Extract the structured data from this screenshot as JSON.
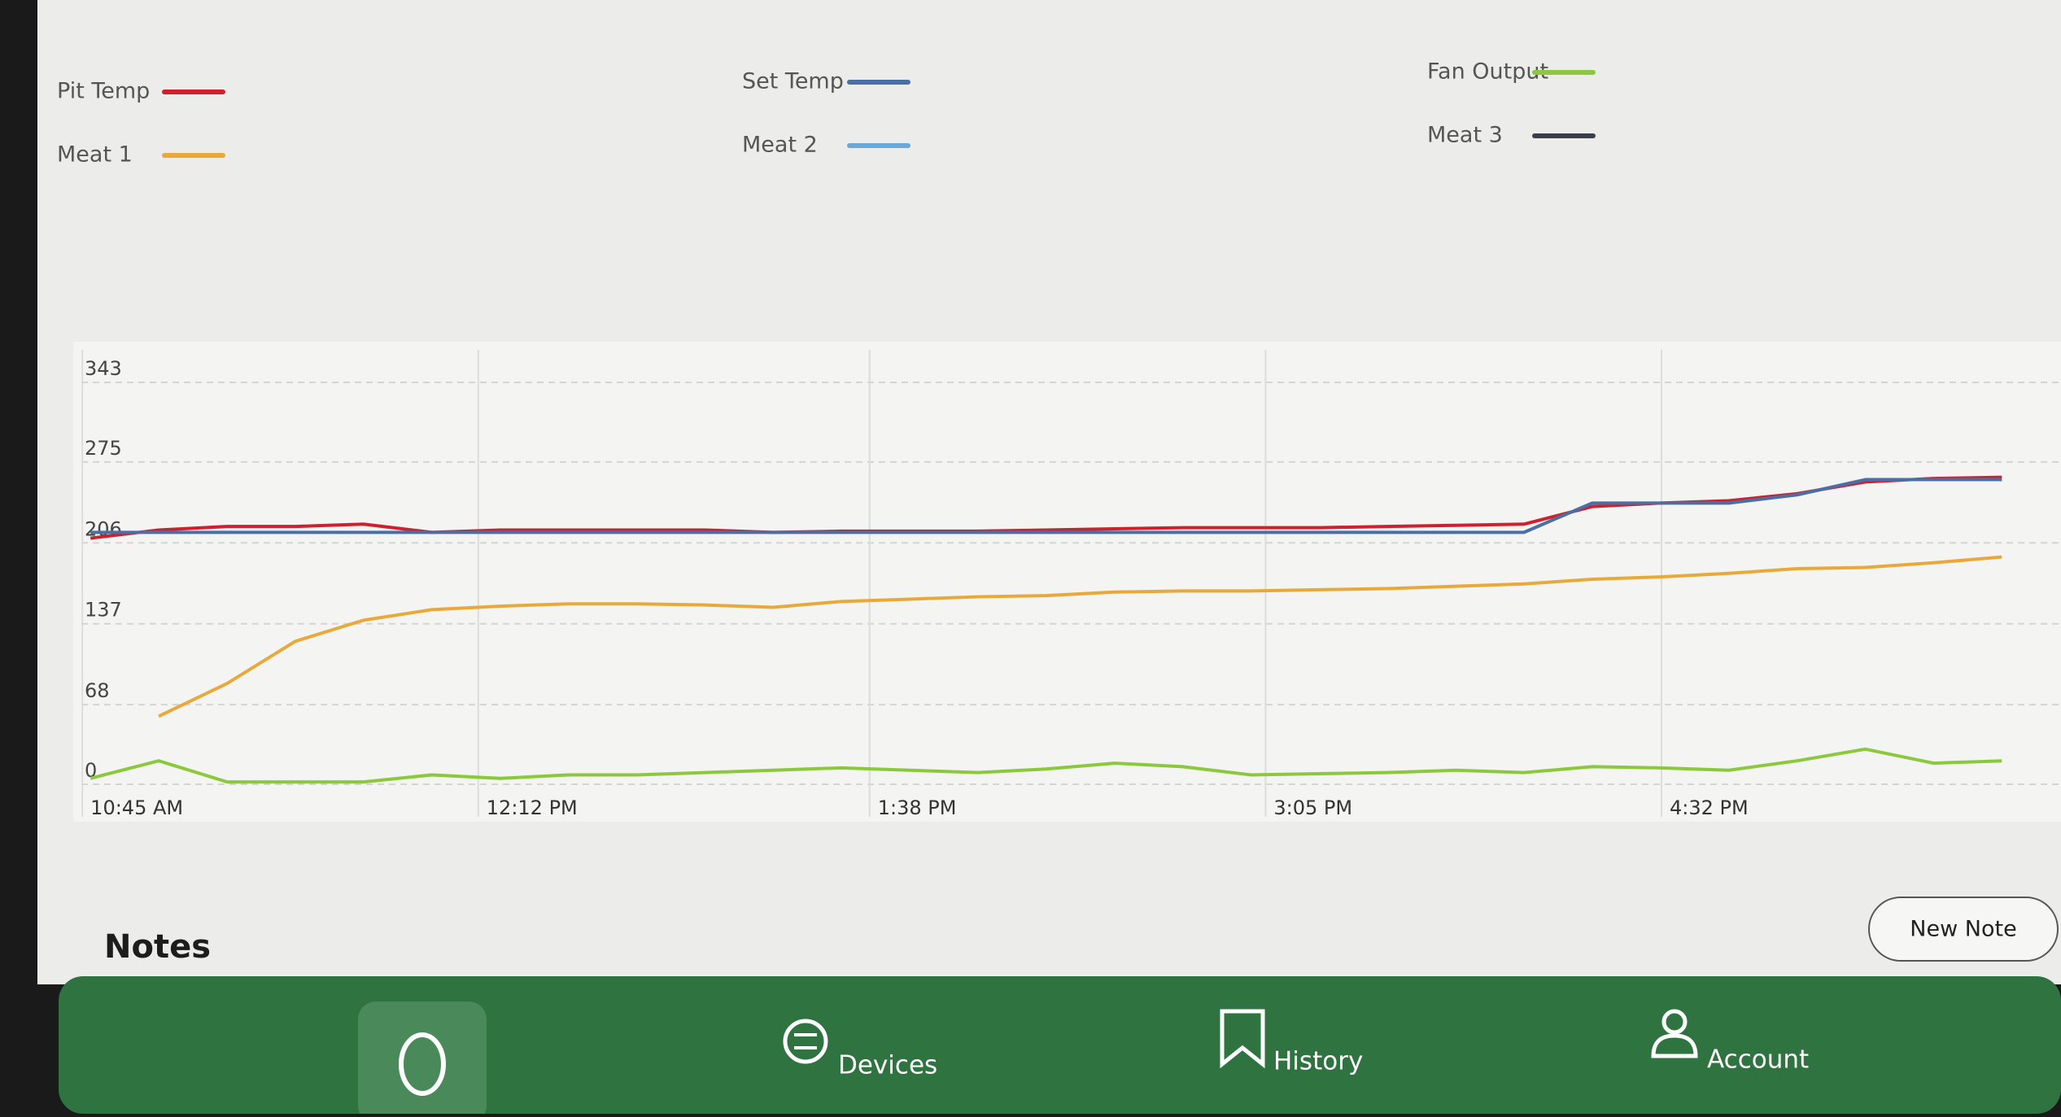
{
  "chart_data": {
    "type": "line",
    "x": [
      "10:45 AM",
      "11:00 AM",
      "11:15 AM",
      "11:30 AM",
      "11:45 AM",
      "12:00 PM",
      "12:15 PM",
      "12:30 PM",
      "12:45 PM",
      "1:00 PM",
      "1:15 PM",
      "1:30 PM",
      "1:45 PM",
      "2:00 PM",
      "2:15 PM",
      "2:30 PM",
      "2:45 PM",
      "3:00 PM",
      "3:15 PM",
      "3:30 PM",
      "3:45 PM",
      "4:00 PM",
      "4:15 PM",
      "4:30 PM",
      "4:45 PM",
      "5:00 PM",
      "5:15 PM",
      "5:30 PM",
      "5:45 PM"
    ],
    "series": [
      {
        "name": "Pit Temp",
        "color": "#d0202e",
        "values": [
          210,
          217,
          220,
          220,
          222,
          215,
          217,
          217,
          217,
          217,
          215,
          216,
          216,
          216,
          217,
          218,
          219,
          219,
          219,
          220,
          221,
          222,
          237,
          240,
          242,
          248,
          258,
          261,
          262
        ]
      },
      {
        "name": "Meat 1",
        "color": "#e8a93a",
        "values": [
          null,
          58,
          86,
          122,
          140,
          149,
          152,
          154,
          154,
          153,
          151,
          156,
          158,
          160,
          161,
          164,
          165,
          165,
          166,
          167,
          169,
          171,
          175,
          177,
          180,
          184,
          185,
          189,
          194
        ]
      },
      {
        "name": "Set Temp",
        "color": "#4a6fa5",
        "values": [
          215,
          215,
          215,
          215,
          215,
          215,
          215,
          215,
          215,
          215,
          215,
          215,
          215,
          215,
          215,
          215,
          215,
          215,
          215,
          215,
          215,
          215,
          240,
          240,
          240,
          247,
          260,
          260,
          260
        ]
      },
      {
        "name": "Meat 2",
        "color": "#6aa8d8",
        "values": [
          null,
          null,
          null,
          null,
          null,
          null,
          null,
          null,
          null,
          null,
          null,
          null,
          null,
          null,
          null,
          null,
          null,
          null,
          null,
          null,
          null,
          null,
          null,
          null,
          null,
          null,
          null,
          null,
          null
        ]
      },
      {
        "name": "Fan Output",
        "color": "#8cc83c",
        "values": [
          5,
          20,
          2,
          2,
          2,
          8,
          5,
          8,
          8,
          10,
          12,
          14,
          12,
          10,
          13,
          18,
          15,
          8,
          9,
          10,
          12,
          10,
          15,
          14,
          12,
          20,
          30,
          18,
          20
        ]
      },
      {
        "name": "Meat 3",
        "color": "#3a3f4a",
        "values": [
          null,
          null,
          null,
          null,
          null,
          null,
          null,
          null,
          null,
          null,
          null,
          null,
          null,
          null,
          null,
          null,
          null,
          null,
          null,
          null,
          null,
          null,
          null,
          null,
          null,
          null,
          null,
          null,
          null
        ]
      }
    ],
    "xlim": [
      "10:43 AM",
      "5:58 PM"
    ],
    "xticks": [
      "10:45 AM",
      "12:12 PM",
      "1:38 PM",
      "3:05 PM",
      "4:32 PM"
    ],
    "ylim": [
      0,
      343
    ],
    "yticks": [
      0,
      68,
      137,
      206,
      275,
      343
    ],
    "grid": true
  },
  "notes": {
    "title": "Notes",
    "button": "New Note"
  },
  "nav": [
    "Devices",
    "History",
    "Account"
  ]
}
